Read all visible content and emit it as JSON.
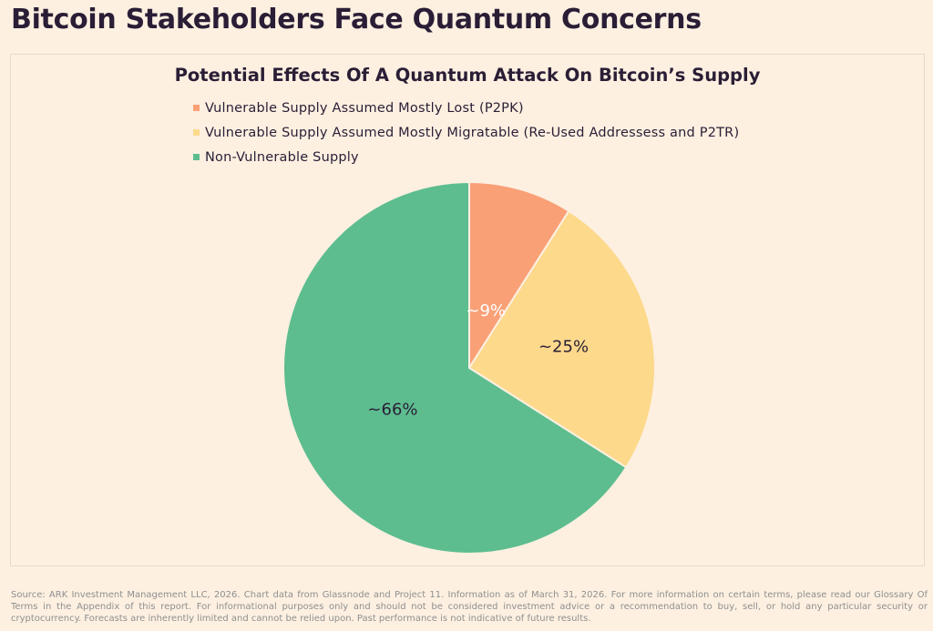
{
  "page_title": "Bitcoin Stakeholders Face Quantum Concerns",
  "chart_data": {
    "type": "pie",
    "title": "Potential Effects Of A Quantum Attack On Bitcoin’s Supply",
    "legend_position": "top-left",
    "slices": [
      {
        "name": "Vulnerable Supply Assumed Mostly Lost (P2PK)",
        "value": 9,
        "label": "~9%",
        "color": "#f9a077",
        "label_color": "#ffffff"
      },
      {
        "name": "Vulnerable Supply Assumed Mostly Migratable (Re-Used Addressess and P2TR)",
        "value": 25,
        "label": "~25%",
        "color": "#fdd98c",
        "label_color": "#2a1e36"
      },
      {
        "name": "Non-Vulnerable Supply",
        "value": 66,
        "label": "~66%",
        "color": "#5dbd8f",
        "label_color": "#2a1e36"
      }
    ]
  },
  "source_note": "Source: ARK Investment Management LLC, 2026. Chart data from Glassnode and Project 11. Information as of March 31, 2026. For more information on certain terms, please read our Glossary Of Terms in the Appendix of this report. For informational purposes only and should not be considered investment advice or a recommendation to buy, sell, or hold any particular security or cryptocurrency. Forecasts are inherently limited and cannot be relied upon. Past performance is not indicative of future results."
}
